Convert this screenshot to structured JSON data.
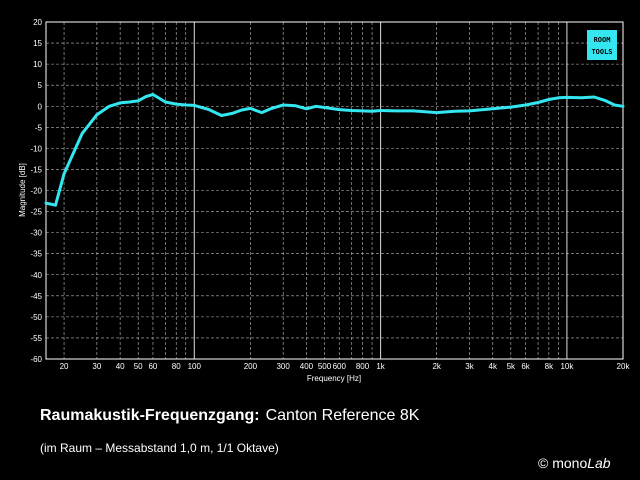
{
  "chart_data": {
    "type": "line",
    "xlabel": "Frequency [Hz]",
    "ylabel": "Magnitude [dB]",
    "xscale": "log",
    "xlim": [
      16,
      20000
    ],
    "ylim": [
      -60,
      20
    ],
    "grid": true,
    "x_tick_labels": [
      "20",
      "30",
      "40",
      "50",
      "60",
      "80",
      "100",
      "200",
      "300",
      "400",
      "500",
      "600",
      "800",
      "1k",
      "2k",
      "3k",
      "4k",
      "5k",
      "6k",
      "8k",
      "10k",
      "20k"
    ],
    "x_tick_values": [
      20,
      30,
      40,
      50,
      60,
      80,
      100,
      200,
      300,
      400,
      500,
      600,
      800,
      1000,
      2000,
      3000,
      4000,
      5000,
      6000,
      8000,
      10000,
      20000
    ],
    "y_ticks": [
      20,
      15,
      10,
      5,
      0,
      -5,
      -10,
      -15,
      -20,
      -25,
      -30,
      -35,
      -40,
      -45,
      -50,
      -55,
      -60
    ],
    "series": [
      {
        "color": "#33e6f0",
        "x": [
          16,
          18,
          20,
          25,
          30,
          35,
          40,
          45,
          50,
          55,
          60,
          70,
          80,
          90,
          100,
          120,
          140,
          160,
          180,
          200,
          230,
          260,
          300,
          350,
          400,
          450,
          500,
          600,
          700,
          800,
          900,
          1000,
          1200,
          1500,
          2000,
          2500,
          3000,
          4000,
          5000,
          6000,
          7000,
          8000,
          9000,
          10000,
          12000,
          14000,
          16000,
          18000,
          20000
        ],
        "y": [
          -23,
          -23.5,
          -16,
          -6.5,
          -2,
          0,
          0.8,
          1,
          1.3,
          2.3,
          2.8,
          1,
          0.5,
          0.3,
          0.2,
          -0.8,
          -2.2,
          -1.7,
          -0.9,
          -0.5,
          -1.5,
          -0.5,
          0.3,
          0.1,
          -0.6,
          0,
          -0.3,
          -0.8,
          -1,
          -1.1,
          -1.2,
          -1,
          -1.1,
          -1.1,
          -1.5,
          -1.2,
          -1.1,
          -0.6,
          -0.2,
          0.3,
          0.9,
          1.6,
          2,
          2.1,
          2,
          2.2,
          1.4,
          0.3,
          0
        ]
      }
    ]
  },
  "logo": {
    "line1": "ROOM",
    "line2": "TOOLS",
    "bg": "#33e6f0"
  },
  "caption": {
    "title": "Raumakustik-Frequenzgang:",
    "subject": "Canton Reference 8K",
    "subtitle": "(im Raum – Messabstand 1,0 m, 1/1 Oktave)"
  },
  "copyright": {
    "prefix": "© mono",
    "suffix": "Lab"
  }
}
